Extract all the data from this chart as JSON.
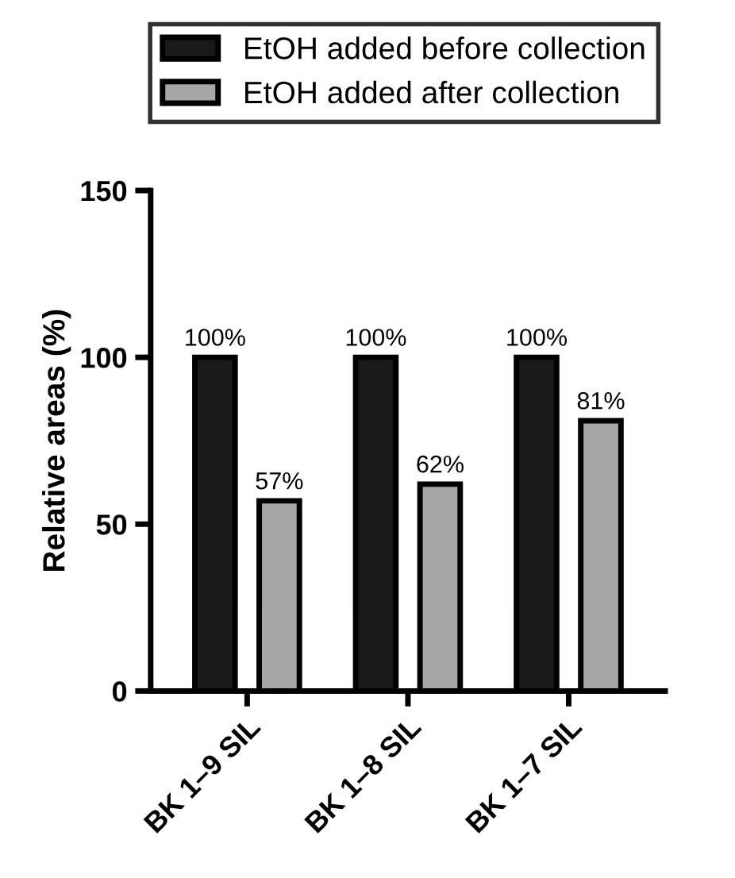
{
  "chart_data": {
    "type": "bar",
    "ylabel": "Relative areas (%)",
    "categories": [
      "BK 1–9 SIL",
      "BK 1–8 SIL",
      "BK 1–7 SIL"
    ],
    "series": [
      {
        "name": "EtOH added before collection",
        "color": "#1a1a1a",
        "values": [
          100,
          100,
          100
        ],
        "value_labels": [
          "100%",
          "100%",
          "100%"
        ]
      },
      {
        "name": "EtOH added after collection",
        "color": "#a6a6a6",
        "values": [
          57,
          62,
          81
        ],
        "value_labels": [
          "57%",
          "62%",
          "81%"
        ]
      }
    ],
    "ylim": [
      0,
      150
    ],
    "yticks": [
      0,
      50,
      100,
      150
    ],
    "grid": false,
    "legend": "top"
  }
}
